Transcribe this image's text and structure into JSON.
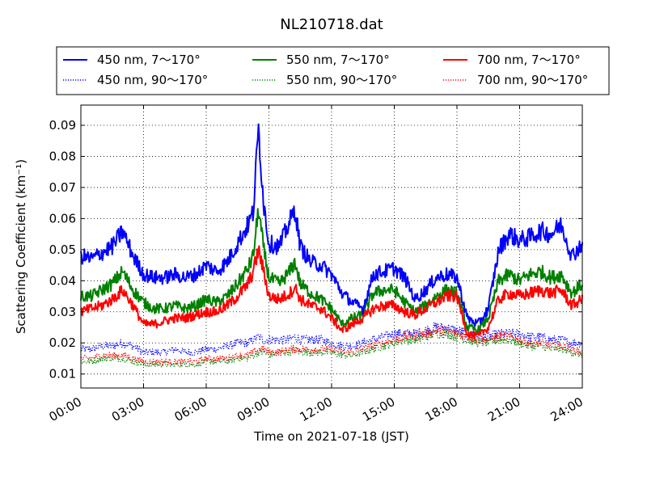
{
  "chart_data": {
    "type": "line",
    "title": "NL210718.dat",
    "xlabel": "Time on 2021-07-18 (JST)",
    "ylabel": "Scattering Coefficient (km⁻¹)",
    "xlim_hours": [
      0,
      24
    ],
    "ylim": [
      0.0055,
      0.0965
    ],
    "x_ticks": [
      "00:00",
      "03:00",
      "06:00",
      "09:00",
      "12:00",
      "15:00",
      "18:00",
      "21:00",
      "24:00"
    ],
    "y_ticks": [
      "0.01",
      "0.02",
      "0.03",
      "0.04",
      "0.05",
      "0.06",
      "0.07",
      "0.08",
      "0.09"
    ],
    "grid": true,
    "legend_placement": "top (above plot)",
    "legend": [
      "450 nm, 7～170°",
      "550 nm, 7～170°",
      "700 nm, 7～170°",
      "450 nm, 90～170°",
      "550 nm, 90～170°",
      "700 nm, 90～170°"
    ],
    "x_hours": [
      0,
      0.5,
      1,
      1.5,
      2,
      2.5,
      3,
      3.5,
      4,
      4.5,
      5,
      5.5,
      6,
      6.5,
      7,
      7.5,
      8,
      8.25,
      8.5,
      8.75,
      9,
      9.5,
      10,
      10.25,
      10.5,
      11,
      11.5,
      12,
      12.5,
      13,
      13.5,
      14,
      14.5,
      15,
      15.5,
      16,
      16.5,
      17,
      17.5,
      18,
      18.5,
      19,
      19.5,
      20,
      20.5,
      21,
      21.5,
      22,
      22.5,
      23,
      23.5,
      24
    ],
    "series": [
      {
        "color": "#0000ff",
        "style": "solid",
        "values": [
          0.048,
          0.047,
          0.049,
          0.051,
          0.056,
          0.048,
          0.042,
          0.041,
          0.041,
          0.042,
          0.041,
          0.042,
          0.045,
          0.043,
          0.046,
          0.052,
          0.058,
          0.062,
          0.089,
          0.065,
          0.052,
          0.051,
          0.059,
          0.063,
          0.051,
          0.046,
          0.045,
          0.042,
          0.036,
          0.033,
          0.031,
          0.042,
          0.043,
          0.044,
          0.041,
          0.034,
          0.037,
          0.041,
          0.042,
          0.041,
          0.028,
          0.026,
          0.031,
          0.05,
          0.055,
          0.053,
          0.054,
          0.056,
          0.055,
          0.058,
          0.048,
          0.052
        ]
      },
      {
        "color": "#008000",
        "style": "solid",
        "values": [
          0.035,
          0.035,
          0.037,
          0.039,
          0.043,
          0.037,
          0.033,
          0.031,
          0.031,
          0.032,
          0.031,
          0.032,
          0.034,
          0.033,
          0.035,
          0.039,
          0.044,
          0.048,
          0.063,
          0.05,
          0.041,
          0.039,
          0.043,
          0.046,
          0.039,
          0.036,
          0.034,
          0.031,
          0.026,
          0.028,
          0.029,
          0.036,
          0.037,
          0.037,
          0.033,
          0.03,
          0.032,
          0.035,
          0.037,
          0.036,
          0.025,
          0.024,
          0.028,
          0.04,
          0.042,
          0.04,
          0.042,
          0.043,
          0.041,
          0.042,
          0.036,
          0.039
        ]
      },
      {
        "color": "#ff0000",
        "style": "solid",
        "values": [
          0.03,
          0.031,
          0.032,
          0.034,
          0.037,
          0.032,
          0.026,
          0.026,
          0.027,
          0.028,
          0.028,
          0.029,
          0.03,
          0.03,
          0.032,
          0.035,
          0.039,
          0.043,
          0.05,
          0.043,
          0.035,
          0.034,
          0.036,
          0.038,
          0.034,
          0.032,
          0.031,
          0.028,
          0.024,
          0.026,
          0.028,
          0.031,
          0.032,
          0.032,
          0.03,
          0.029,
          0.031,
          0.033,
          0.035,
          0.035,
          0.023,
          0.022,
          0.025,
          0.034,
          0.036,
          0.035,
          0.036,
          0.037,
          0.036,
          0.037,
          0.032,
          0.034
        ]
      },
      {
        "color": "#0000ff",
        "style": "dotted",
        "values": [
          0.018,
          0.018,
          0.019,
          0.019,
          0.02,
          0.019,
          0.017,
          0.017,
          0.017,
          0.018,
          0.017,
          0.017,
          0.018,
          0.018,
          0.019,
          0.02,
          0.02,
          0.021,
          0.022,
          0.021,
          0.021,
          0.021,
          0.021,
          0.022,
          0.021,
          0.021,
          0.021,
          0.02,
          0.019,
          0.019,
          0.02,
          0.021,
          0.022,
          0.023,
          0.023,
          0.023,
          0.024,
          0.025,
          0.025,
          0.024,
          0.023,
          0.022,
          0.022,
          0.023,
          0.023,
          0.023,
          0.022,
          0.022,
          0.021,
          0.021,
          0.02,
          0.02
        ]
      },
      {
        "color": "#008000",
        "style": "dotted",
        "values": [
          0.014,
          0.014,
          0.015,
          0.015,
          0.015,
          0.014,
          0.013,
          0.013,
          0.013,
          0.013,
          0.013,
          0.013,
          0.014,
          0.014,
          0.014,
          0.015,
          0.015,
          0.016,
          0.017,
          0.017,
          0.016,
          0.017,
          0.017,
          0.018,
          0.017,
          0.017,
          0.017,
          0.017,
          0.016,
          0.016,
          0.017,
          0.018,
          0.019,
          0.02,
          0.021,
          0.021,
          0.022,
          0.023,
          0.023,
          0.022,
          0.021,
          0.02,
          0.02,
          0.021,
          0.021,
          0.02,
          0.019,
          0.019,
          0.018,
          0.018,
          0.017,
          0.016
        ]
      },
      {
        "color": "#ff0000",
        "style": "dotted",
        "values": [
          0.015,
          0.015,
          0.016,
          0.016,
          0.016,
          0.015,
          0.014,
          0.014,
          0.014,
          0.014,
          0.014,
          0.014,
          0.015,
          0.015,
          0.015,
          0.016,
          0.016,
          0.017,
          0.018,
          0.018,
          0.017,
          0.017,
          0.018,
          0.018,
          0.018,
          0.018,
          0.018,
          0.018,
          0.017,
          0.017,
          0.018,
          0.019,
          0.02,
          0.021,
          0.022,
          0.022,
          0.023,
          0.024,
          0.024,
          0.023,
          0.022,
          0.021,
          0.021,
          0.022,
          0.022,
          0.021,
          0.02,
          0.02,
          0.019,
          0.019,
          0.018,
          0.017
        ]
      }
    ]
  }
}
